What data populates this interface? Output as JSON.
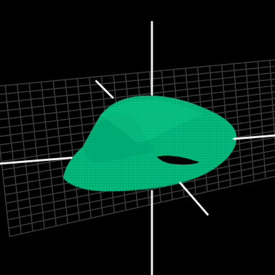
{
  "viewport": {
    "background_color": "#000000"
  },
  "scene": {
    "grid_plane": {
      "color": "#3a3a3a",
      "visible": true
    },
    "axes": {
      "color": "#f2f2f2",
      "count": 3,
      "labels_shown": false
    },
    "surface": {
      "shape": "mobius-like folded surface",
      "color": "#00b47a",
      "highlight_color": "#11c987",
      "shadow_color": "#009a66",
      "hole_color": "#000000"
    }
  }
}
